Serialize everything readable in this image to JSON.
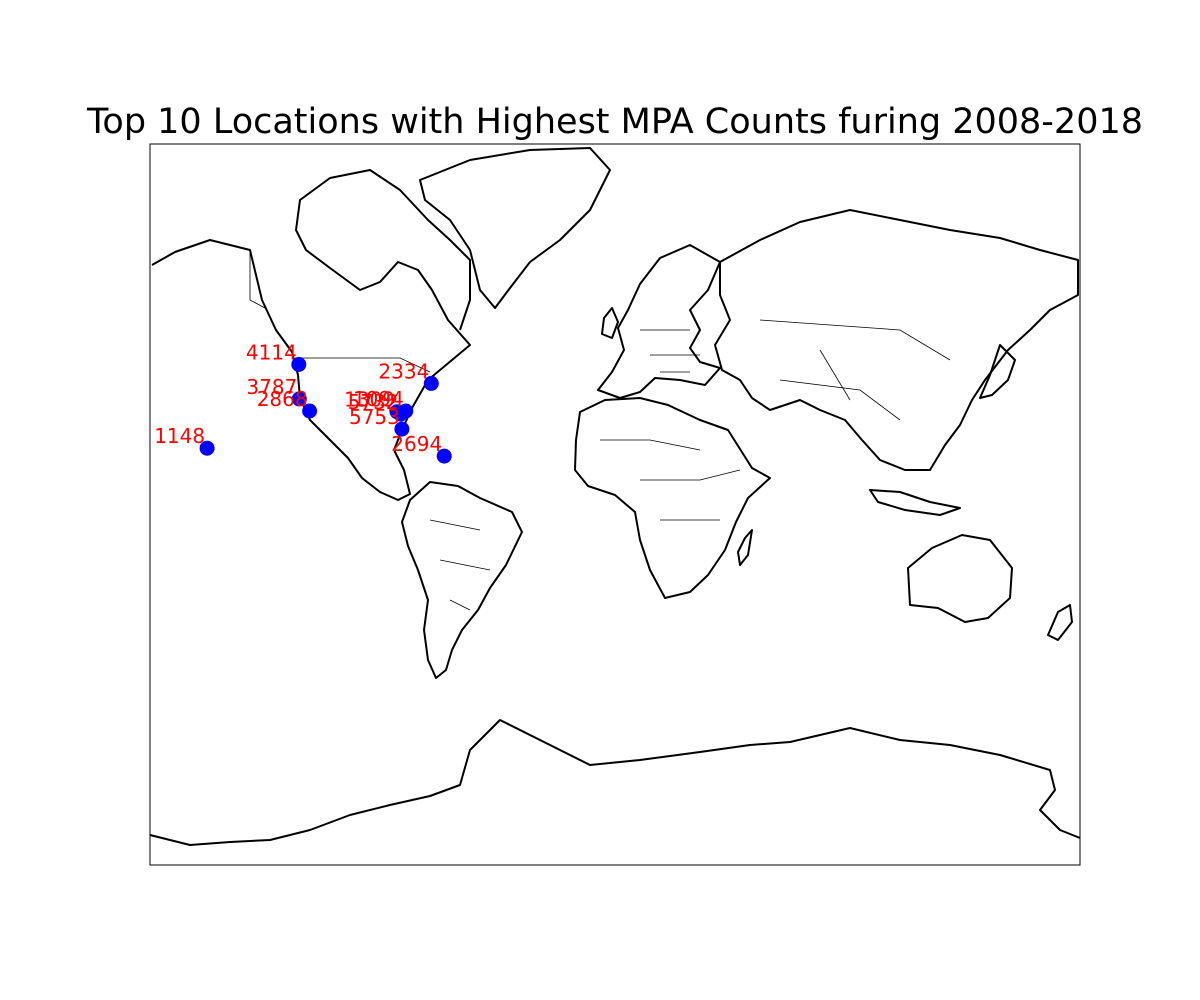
{
  "title": "Top 10 Locations with Highest MPA Counts furing 2008-2018",
  "chart_data": {
    "type": "scatter",
    "projection": "mercator",
    "lat_range": [
      -80,
      80
    ],
    "lon_range": [
      -180,
      180
    ],
    "marker_color": "#0000ff",
    "label_color": "#ff0000",
    "points": [
      {
        "label": "4114",
        "lon": -122.4,
        "lat": 47.6
      },
      {
        "label": "2334",
        "lon": -71.1,
        "lat": 42.4
      },
      {
        "label": "3787",
        "lon": -122.2,
        "lat": 37.8
      },
      {
        "label": "2868",
        "lon": -118.2,
        "lat": 34.0
      },
      {
        "label": "1309",
        "lon": -84.4,
        "lat": 33.8
      },
      {
        "label": "1094",
        "lon": -81.0,
        "lat": 34.0
      },
      {
        "label": "5732",
        "lon": -83.0,
        "lat": 33.0
      },
      {
        "label": "5753",
        "lon": -82.5,
        "lat": 28.0
      },
      {
        "label": "2694",
        "lon": -66.1,
        "lat": 18.4
      },
      {
        "label": "1148",
        "lon": -157.9,
        "lat": 21.3
      }
    ]
  }
}
